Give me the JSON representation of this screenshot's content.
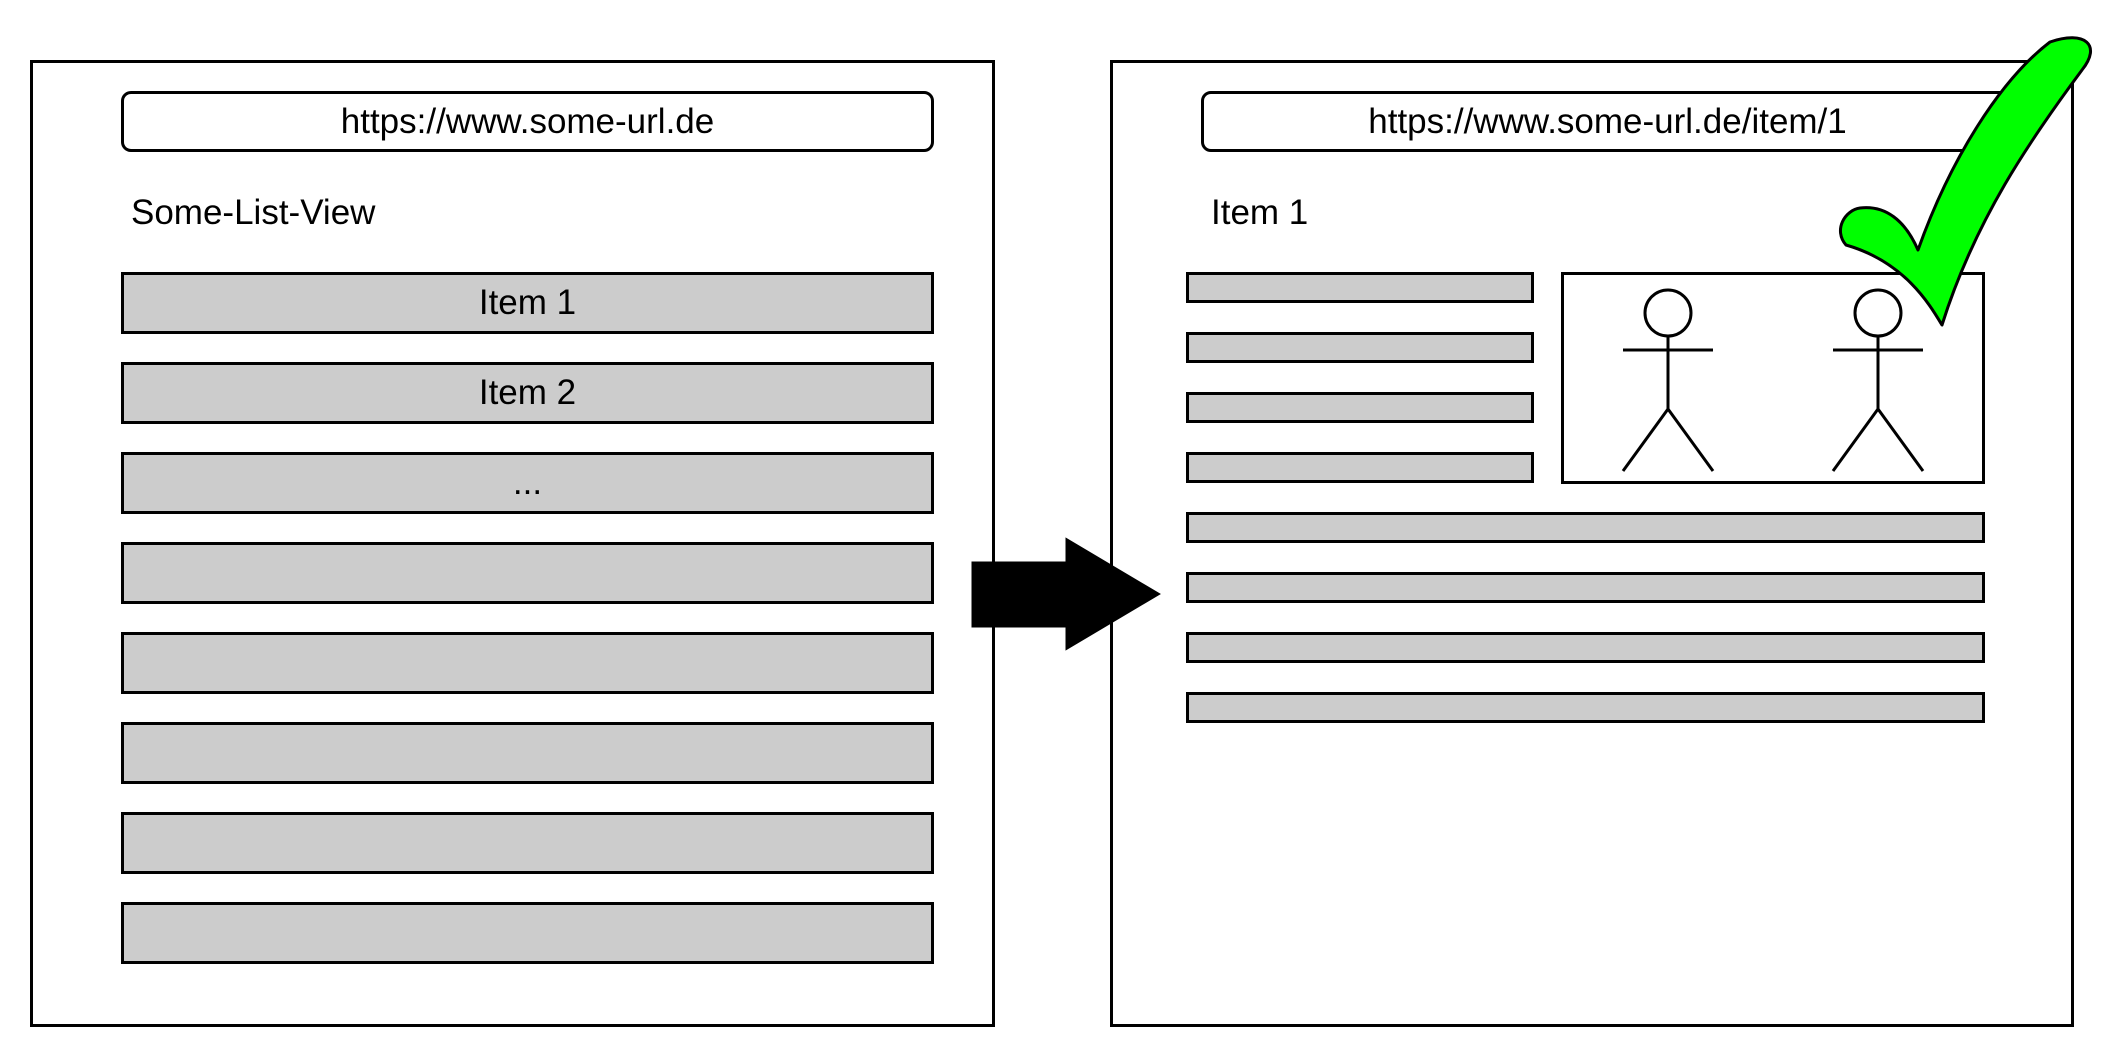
{
  "list_view": {
    "url": "https://www.some-url.de",
    "title": "Some-List-View",
    "items": [
      {
        "label": "Item 1"
      },
      {
        "label": "Item 2"
      },
      {
        "label": "..."
      },
      {
        "label": ""
      },
      {
        "label": ""
      },
      {
        "label": ""
      },
      {
        "label": ""
      },
      {
        "label": ""
      }
    ]
  },
  "detail_view": {
    "url": "https://www.some-url.de/item/1",
    "title": "Item 1"
  },
  "colors": {
    "placeholder_fill": "#cccccc",
    "checkmark": "#00ff00"
  }
}
